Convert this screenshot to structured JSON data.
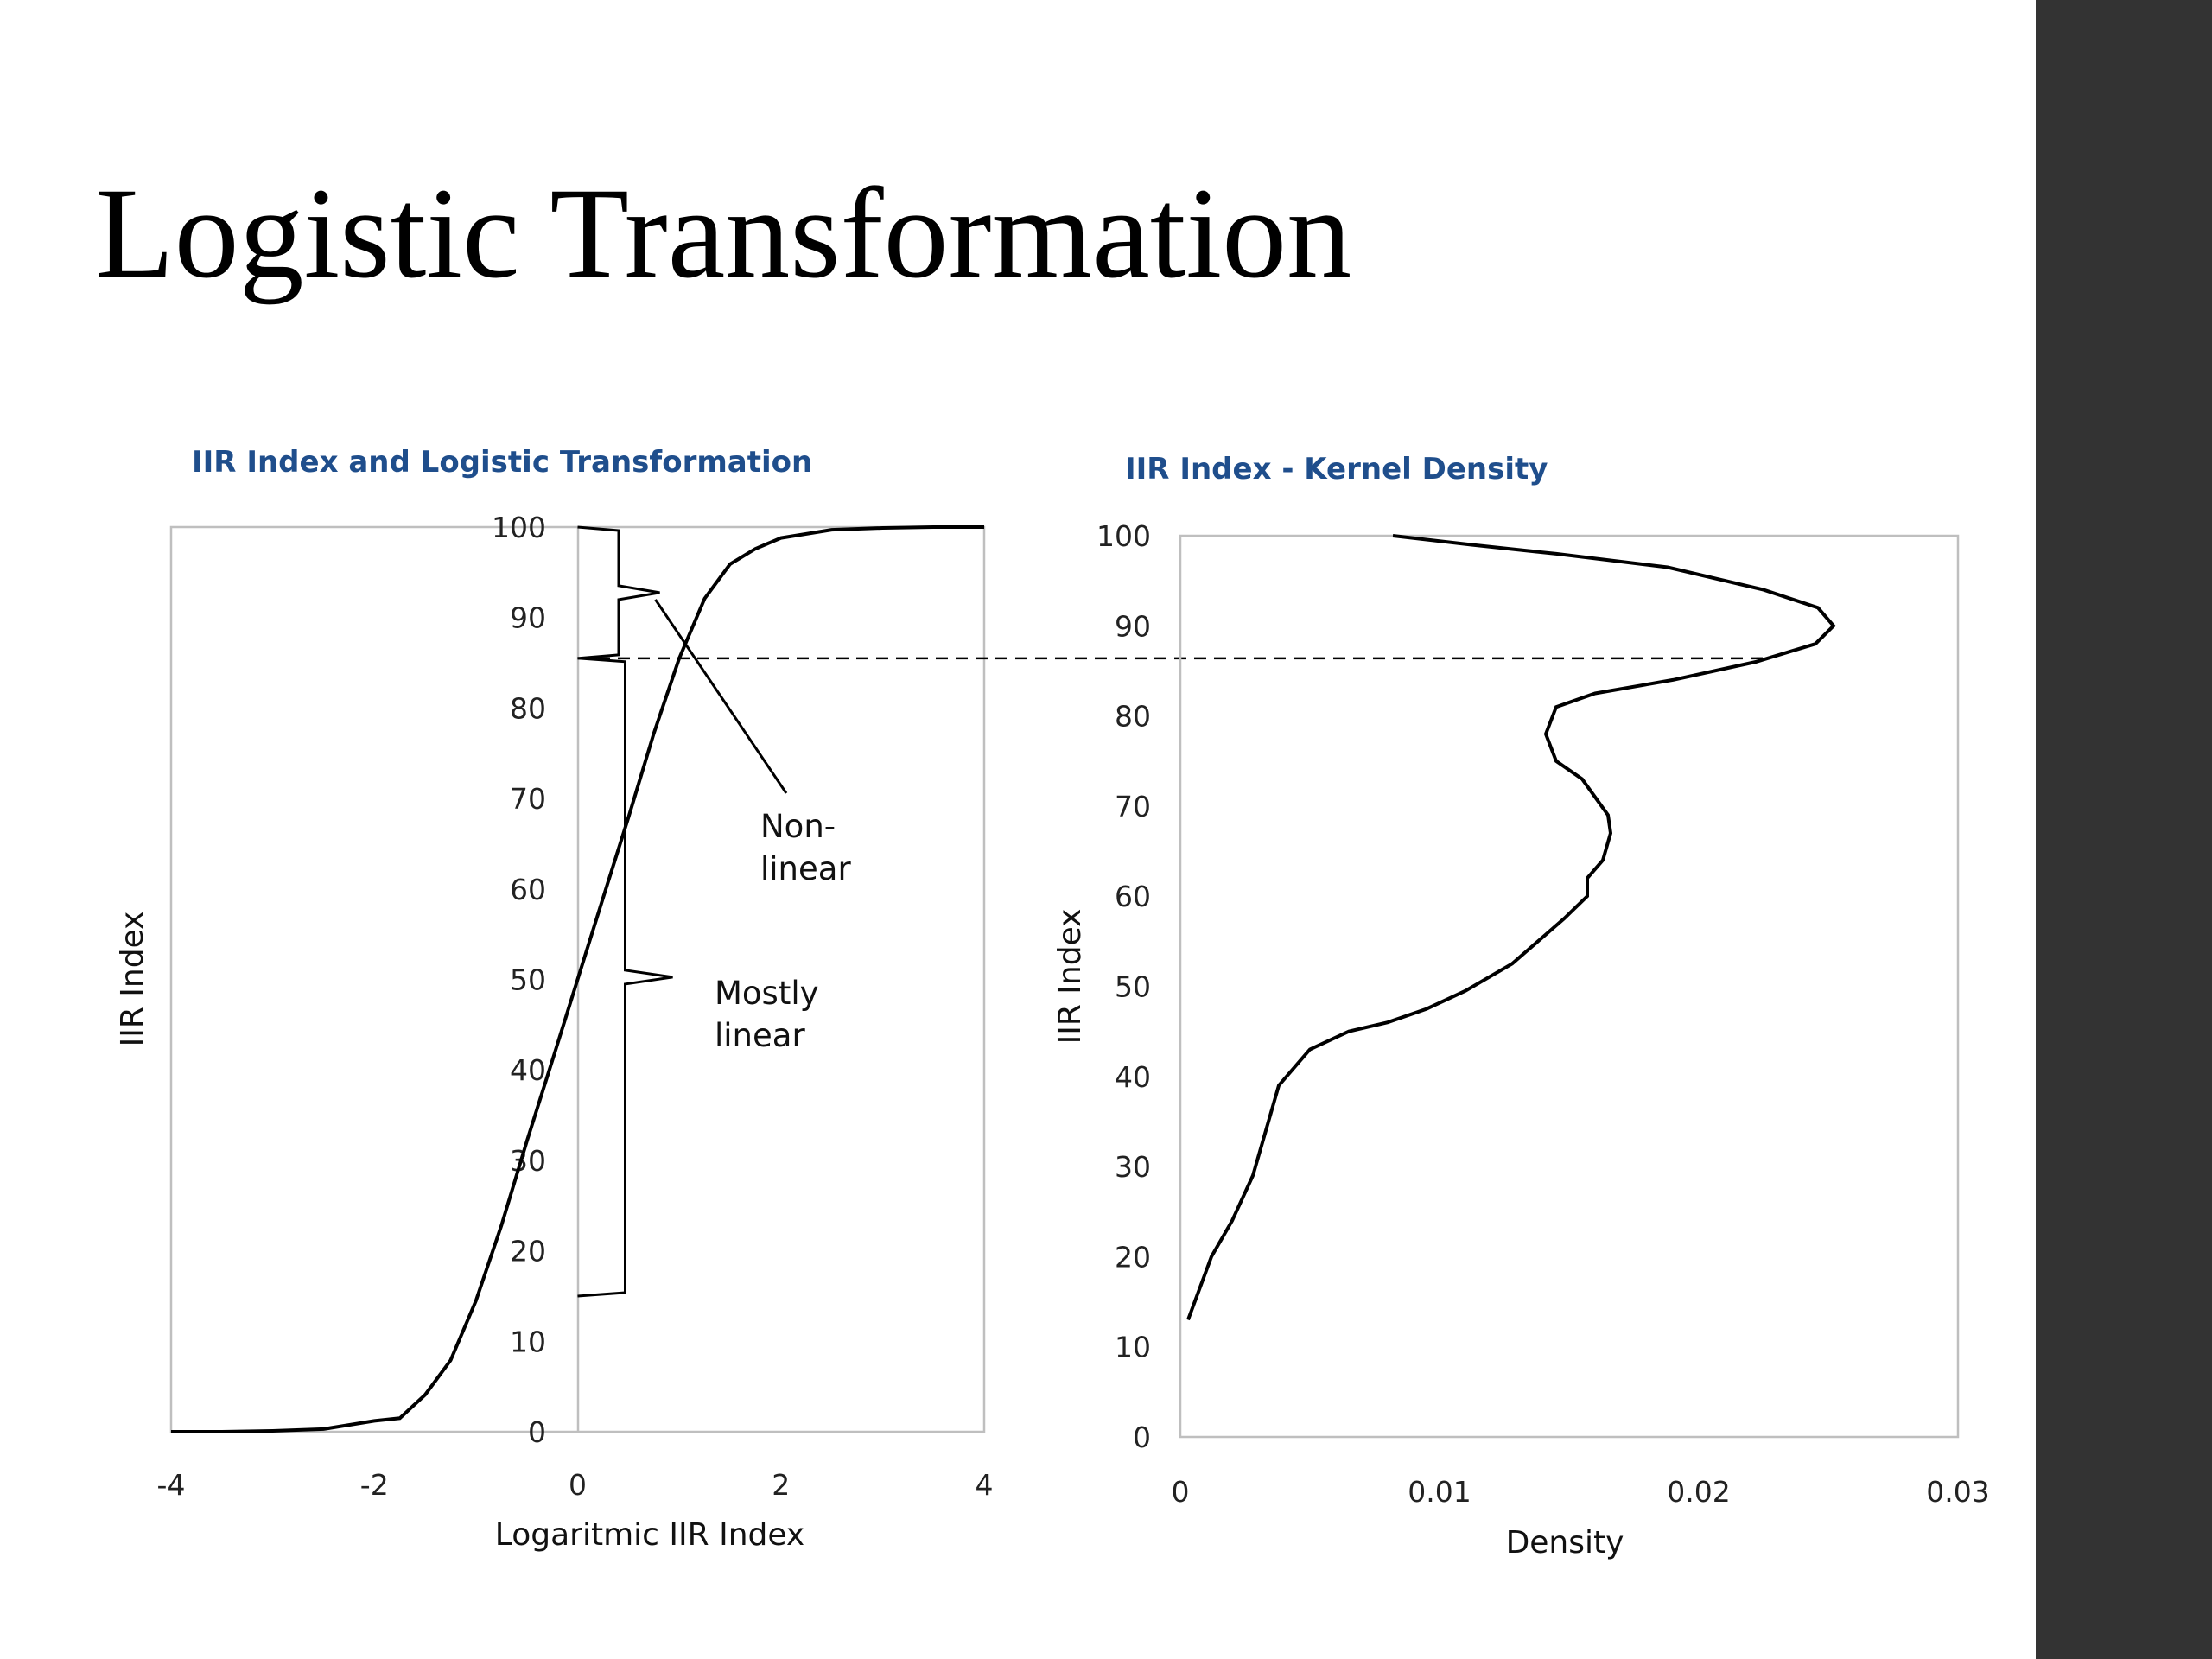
{
  "slide": {
    "title": "Logistic Transformation",
    "accent_band_color": "#333333",
    "chart_title_color": "#1f4e8c"
  },
  "chart_data": [
    {
      "type": "line",
      "title": "IIR Index and Logistic Transformation",
      "xlabel": "Logaritmic IIR Index",
      "ylabel": "IIR Index",
      "xlim": [
        -4,
        4
      ],
      "ylim": [
        0,
        100
      ],
      "xticks": [
        "-4",
        "-2",
        "0",
        "2",
        "4"
      ],
      "yticks": [
        "0",
        "10",
        "20",
        "30",
        "40",
        "50",
        "60",
        "70",
        "80",
        "90",
        "100"
      ],
      "grid": false,
      "legend": "none",
      "series": [
        {
          "x": [
            -4,
            -3.5,
            -3,
            -2.5,
            -2,
            -1.75,
            -1.5,
            -1.25,
            -1,
            -0.75,
            -0.5,
            -0.25,
            0,
            0.25,
            0.5,
            0.75,
            1,
            1.25,
            1.5,
            1.75,
            2,
            2.5,
            3,
            3.5,
            4
          ],
          "y": [
            0.0,
            0.0,
            0.1,
            0.3,
            1.2,
            1.5,
            4.1,
            7.9,
            14.5,
            22.8,
            32.1,
            41.0,
            50.0,
            59.0,
            67.9,
            77.2,
            85.5,
            92.1,
            95.9,
            97.6,
            98.8,
            99.7,
            99.9,
            100.0,
            100.0
          ]
        }
      ],
      "annotations": [
        {
          "lines": [
            "Non-",
            "linear"
          ],
          "y_range": [
            85.5,
            100
          ],
          "x": 0.5
        },
        {
          "lines": [
            "Mostly",
            "linear"
          ],
          "y_range": [
            15,
            85.5
          ],
          "x": 0.5
        }
      ],
      "reference_line": {
        "y": 85.5,
        "style": "dashed"
      }
    },
    {
      "type": "line",
      "title": "IIR Index - Kernel Density",
      "xlabel": "Density",
      "ylabel": "IIR Index",
      "xlim": [
        0,
        0.03
      ],
      "ylim": [
        0,
        100
      ],
      "xticks": [
        "0",
        "0.01",
        "0.02",
        "0.03"
      ],
      "yticks": [
        "0",
        "10",
        "20",
        "30",
        "40",
        "50",
        "60",
        "70",
        "80",
        "90",
        "100"
      ],
      "grid": false,
      "legend": "none",
      "series": [
        {
          "x": [
            0.0003,
            0.0012,
            0.002,
            0.0028,
            0.0033,
            0.0038,
            0.005,
            0.0065,
            0.008,
            0.0095,
            0.011,
            0.0128,
            0.014,
            0.0148,
            0.0157,
            0.0157,
            0.0163,
            0.0166,
            0.0165,
            0.0155,
            0.0145,
            0.0141,
            0.0145,
            0.016,
            0.019,
            0.0222,
            0.0245,
            0.0252,
            0.0246,
            0.0225,
            0.0188,
            0.0145,
            0.0112,
            0.0082
          ],
          "y": [
            13,
            20,
            24,
            29,
            34,
            39,
            43,
            45,
            46,
            47.5,
            49.5,
            52.5,
            55.5,
            57.5,
            60,
            62,
            64,
            67,
            69,
            73,
            75,
            78,
            81,
            82.5,
            84,
            86,
            88,
            90,
            92,
            94,
            96.5,
            98,
            99,
            100
          ]
        }
      ]
    }
  ]
}
